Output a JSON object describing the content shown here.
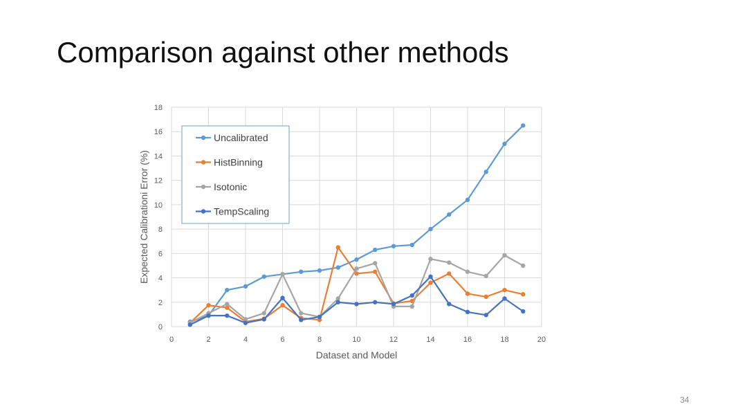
{
  "slide": {
    "title": "Comparison against other methods",
    "page_number": "34"
  },
  "chart_data": {
    "type": "line",
    "title": "",
    "xlabel": "Dataset and Model",
    "ylabel": "Expected Calibrationi Error (%)",
    "xlim": [
      0,
      20
    ],
    "ylim": [
      0,
      18
    ],
    "xticks": [
      0,
      2,
      4,
      6,
      8,
      10,
      12,
      14,
      16,
      18,
      20
    ],
    "yticks": [
      0,
      2,
      4,
      6,
      8,
      10,
      12,
      14,
      16,
      18
    ],
    "grid": true,
    "legend_position": "top-left",
    "series": [
      {
        "name": "Uncalibrated",
        "color": "#5b9bd5",
        "x": [
          1,
          2,
          3,
          4,
          5,
          6,
          7,
          8,
          9,
          10,
          11,
          12,
          13,
          14,
          15,
          16,
          17,
          18,
          19
        ],
        "y": [
          0.4,
          0.9,
          3.0,
          3.3,
          4.1,
          4.3,
          4.5,
          4.6,
          4.85,
          5.5,
          6.3,
          6.6,
          6.7,
          8.0,
          9.2,
          10.4,
          12.7,
          15.0,
          16.5
        ]
      },
      {
        "name": "HistBinning",
        "color": "#ed7d31",
        "x": [
          1,
          2,
          3,
          4,
          5,
          6,
          7,
          8,
          9,
          10,
          11,
          12,
          13,
          14,
          15,
          16,
          17,
          18,
          19
        ],
        "y": [
          0.3,
          1.75,
          1.55,
          0.4,
          0.65,
          1.75,
          0.7,
          0.55,
          6.5,
          4.35,
          4.5,
          1.9,
          2.1,
          3.6,
          4.35,
          2.7,
          2.45,
          3.0,
          2.65
        ]
      },
      {
        "name": "Isotonic",
        "color": "#a5a5a5",
        "x": [
          1,
          2,
          3,
          4,
          5,
          6,
          7,
          8,
          9,
          10,
          11,
          12,
          13,
          14,
          15,
          16,
          17,
          18,
          19
        ],
        "y": [
          0.3,
          1.1,
          1.85,
          0.6,
          1.1,
          4.3,
          1.1,
          0.8,
          2.3,
          4.75,
          5.2,
          1.65,
          1.65,
          5.55,
          5.25,
          4.5,
          4.15,
          5.85,
          5.0
        ]
      },
      {
        "name": "TempScaling",
        "color": "#4472c4",
        "x": [
          1,
          2,
          3,
          4,
          5,
          6,
          7,
          8,
          9,
          10,
          11,
          12,
          13,
          14,
          15,
          16,
          17,
          18,
          19
        ],
        "y": [
          0.15,
          0.9,
          0.9,
          0.3,
          0.6,
          2.35,
          0.55,
          0.8,
          2.0,
          1.85,
          2.0,
          1.85,
          2.55,
          4.1,
          1.85,
          1.2,
          0.95,
          2.3,
          1.25
        ]
      }
    ]
  }
}
